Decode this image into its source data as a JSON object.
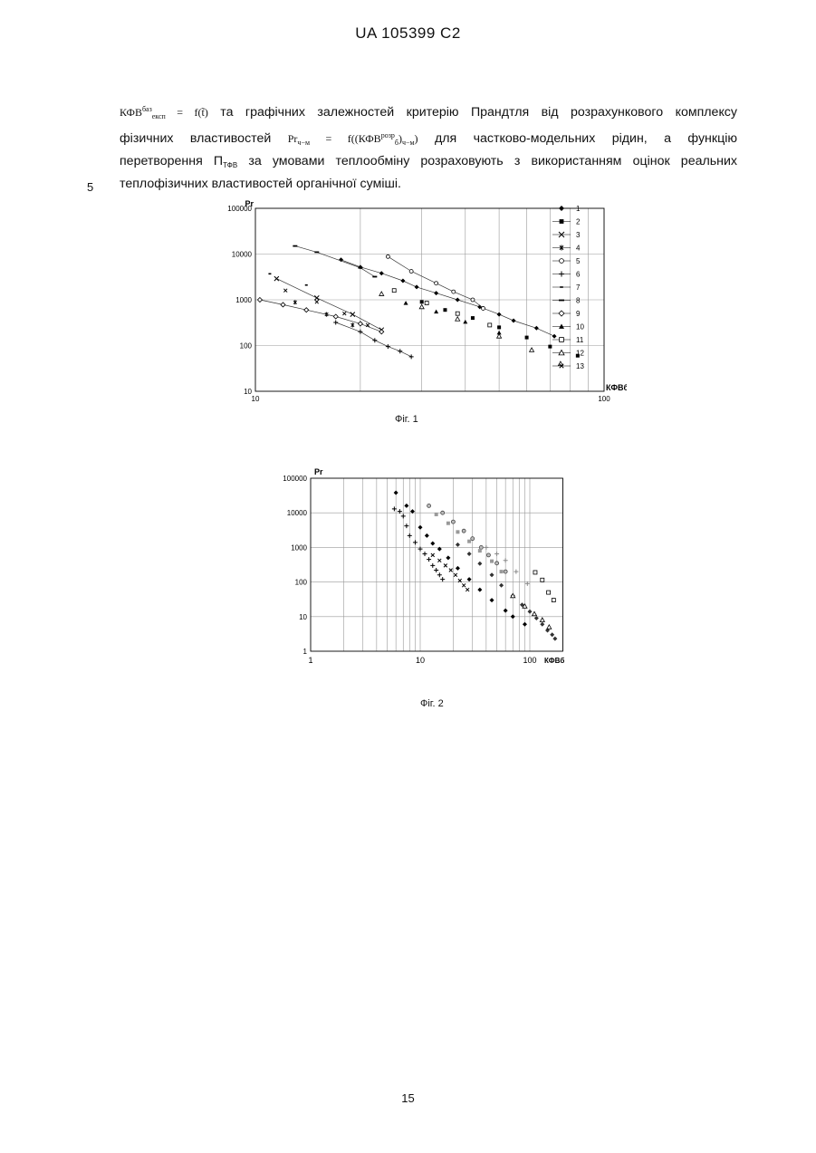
{
  "header": {
    "patent_number": "UA   105399   C2"
  },
  "paragraph": {
    "line1_formula_lhs": "КФВ",
    "line1_formula_sup": "баз",
    "line1_formula_sub": "експ",
    "line1_formula_rhs": "= f(t̃)",
    "line1_text": "та графічних залежностей критерію Прандтля від розрахункового комплексу",
    "line2_text_a": "фізичних  властивостей",
    "line2_formula_lhs": "Pr",
    "line2_formula_sub": "ч−м",
    "line2_formula_mid": "= f((КФВ",
    "line2_formula_sup2": "розр",
    "line2_formula_sub2": "б",
    "line2_formula_end": ")",
    "line2_formula_sub3": "ч−м",
    "line2_formula_close": ")",
    "line2_text_b": "для  частково-модельних  рідин,  а  функцію",
    "line3_text_a": "перетворення П",
    "line3_sub": "ТФВ",
    "line3_text_b": "за умовами теплообміну розраховують з використанням оцінок реальних",
    "line4_text": "теплофізичних властивостей органічної суміші."
  },
  "line_number": "5",
  "figure1": {
    "caption": "Фіг. 1"
  },
  "figure2": {
    "caption": "Фіг. 2"
  },
  "page_number": "15",
  "chart_data": [
    {
      "type": "scatter",
      "figure": "Фіг. 1",
      "ylabel": "Pr",
      "xlabel": "КФВб",
      "x_scale": "log",
      "y_scale": "log",
      "xlim": [
        10,
        100
      ],
      "ylim": [
        10,
        100000
      ],
      "x_ticks": [
        "10",
        "100"
      ],
      "y_ticks": [
        "10",
        "100",
        "1000",
        "10000",
        "100000"
      ],
      "grid": true,
      "legend": "right",
      "legend_entries": [
        "1",
        "2",
        "3",
        "4",
        "5",
        "6",
        "7",
        "8",
        "9",
        "10",
        "11",
        "12",
        "13"
      ],
      "series": [
        {
          "name": "1",
          "marker": "diamond-filled",
          "line": true,
          "points": [
            [
              17.6,
              7500
            ],
            [
              20,
              5200
            ],
            [
              23,
              3800
            ],
            [
              26.5,
              2600
            ],
            [
              29,
              1900
            ],
            [
              33,
              1400
            ],
            [
              38,
              1000
            ],
            [
              44,
              700
            ],
            [
              50,
              480
            ],
            [
              55,
              350
            ],
            [
              64,
              240
            ],
            [
              72,
              160
            ]
          ]
        },
        {
          "name": "2",
          "marker": "square-filled",
          "line": false,
          "points": [
            [
              30,
              900
            ],
            [
              35,
              600
            ],
            [
              42,
              400
            ],
            [
              50,
              250
            ],
            [
              60,
              150
            ],
            [
              70,
              95
            ],
            [
              84,
              60
            ]
          ]
        },
        {
          "name": "3",
          "marker": "x-large",
          "line": true,
          "points": [
            [
              11.5,
              2900
            ],
            [
              15,
              1100
            ],
            [
              19,
              480
            ],
            [
              23,
              220
            ]
          ]
        },
        {
          "name": "4",
          "marker": "asterisk",
          "line": false,
          "points": [
            [
              13,
              880
            ],
            [
              16,
              480
            ],
            [
              19,
              280
            ]
          ]
        },
        {
          "name": "5",
          "marker": "circle",
          "line": true,
          "points": [
            [
              24,
              8800
            ],
            [
              28,
              4200
            ],
            [
              33,
              2300
            ],
            [
              37,
              1500
            ],
            [
              42,
              1000
            ],
            [
              45,
              650
            ]
          ]
        },
        {
          "name": "6",
          "marker": "plus",
          "line": true,
          "points": [
            [
              17,
              320
            ],
            [
              20,
              200
            ],
            [
              22,
              130
            ],
            [
              24,
              95
            ],
            [
              26,
              75
            ],
            [
              28,
              57
            ]
          ]
        },
        {
          "name": "7",
          "marker": "dash",
          "line": false,
          "points": [
            [
              11,
              3700
            ],
            [
              14,
              2100
            ]
          ]
        },
        {
          "name": "8",
          "marker": "bar",
          "line": true,
          "points": [
            [
              13,
              15000
            ],
            [
              15,
              11000
            ],
            [
              20,
              5000
            ],
            [
              22,
              3200
            ]
          ]
        },
        {
          "name": "9",
          "marker": "diamond-open",
          "line": true,
          "points": [
            [
              10.3,
              1000
            ],
            [
              12,
              780
            ],
            [
              14,
              600
            ],
            [
              17,
              430
            ],
            [
              20,
              300
            ],
            [
              23,
              200
            ]
          ]
        },
        {
          "name": "10",
          "marker": "triangle-filled",
          "line": false,
          "points": [
            [
              27,
              850
            ],
            [
              33,
              550
            ],
            [
              40,
              330
            ],
            [
              50,
              190
            ]
          ]
        },
        {
          "name": "11",
          "marker": "square-open",
          "line": false,
          "points": [
            [
              25,
              1600
            ],
            [
              31,
              850
            ],
            [
              38,
              500
            ],
            [
              47,
              280
            ]
          ]
        },
        {
          "name": "12",
          "marker": "triangle-open",
          "line": false,
          "points": [
            [
              23,
              1350
            ],
            [
              30,
              700
            ],
            [
              38,
              380
            ],
            [
              50,
              160
            ],
            [
              62,
              80
            ],
            [
              75,
              40
            ]
          ]
        },
        {
          "name": "13",
          "marker": "x-small",
          "line": false,
          "points": [
            [
              12.2,
              1600
            ],
            [
              15,
              900
            ],
            [
              18,
              500
            ],
            [
              21,
              280
            ]
          ]
        }
      ]
    },
    {
      "type": "scatter",
      "figure": "Фіг. 2",
      "ylabel": "Pr",
      "xlabel": "КФВб",
      "x_scale": "log",
      "y_scale": "log",
      "xlim": [
        1,
        200
      ],
      "ylim": [
        1,
        100000
      ],
      "x_ticks": [
        "1",
        "10",
        "100"
      ],
      "y_ticks": [
        "1",
        "10",
        "100",
        "1000",
        "10000",
        "100000"
      ],
      "grid": true,
      "series": [
        {
          "marker": "diamond-filled",
          "points": [
            [
              6,
              38000
            ],
            [
              7.5,
              16000
            ],
            [
              8.5,
              11000
            ],
            [
              10,
              3800
            ],
            [
              11.5,
              2200
            ],
            [
              13,
              1300
            ],
            [
              15,
              900
            ],
            [
              18,
              500
            ],
            [
              22,
              250
            ],
            [
              28,
              120
            ],
            [
              35,
              60
            ],
            [
              45,
              30
            ],
            [
              60,
              15
            ],
            [
              70,
              10
            ],
            [
              90,
              6
            ]
          ]
        },
        {
          "marker": "plus",
          "points": [
            [
              5.8,
              13000
            ],
            [
              6.5,
              11000
            ],
            [
              7,
              8000
            ],
            [
              7.5,
              4200
            ],
            [
              8,
              2200
            ],
            [
              9,
              1400
            ],
            [
              10,
              900
            ],
            [
              11,
              650
            ],
            [
              12,
              450
            ],
            [
              13,
              300
            ],
            [
              14,
              220
            ],
            [
              15,
              160
            ],
            [
              16,
              120
            ]
          ]
        },
        {
          "marker": "x-small",
          "points": [
            [
              13,
              600
            ],
            [
              15,
              420
            ],
            [
              17,
              300
            ],
            [
              19,
              220
            ],
            [
              21,
              160
            ],
            [
              23,
              110
            ],
            [
              25,
              80
            ],
            [
              27,
              60
            ]
          ]
        },
        {
          "marker": "circle-gray",
          "points": [
            [
              12,
              16000
            ],
            [
              16,
              10000
            ],
            [
              20,
              5500
            ],
            [
              25,
              3000
            ],
            [
              30,
              1800
            ],
            [
              36,
              1000
            ],
            [
              42,
              600
            ],
            [
              50,
              350
            ],
            [
              60,
              200
            ]
          ]
        },
        {
          "marker": "square-gray",
          "points": [
            [
              14,
              9000
            ],
            [
              18,
              5000
            ],
            [
              22,
              2800
            ],
            [
              28,
              1500
            ],
            [
              35,
              800
            ],
            [
              45,
              400
            ],
            [
              55,
              200
            ]
          ]
        },
        {
          "marker": "diamond-dark",
          "points": [
            [
              22,
              1200
            ],
            [
              28,
              650
            ],
            [
              35,
              340
            ],
            [
              45,
              160
            ],
            [
              55,
              80
            ],
            [
              70,
              40
            ],
            [
              85,
              22
            ],
            [
              100,
              14
            ],
            [
              115,
              9
            ],
            [
              130,
              6
            ],
            [
              145,
              4
            ],
            [
              160,
              3
            ],
            [
              170,
              2.3
            ]
          ]
        },
        {
          "marker": "plus-gray",
          "points": [
            [
              40,
              1000
            ],
            [
              50,
              650
            ],
            [
              60,
              420
            ],
            [
              75,
              200
            ],
            [
              95,
              90
            ]
          ]
        },
        {
          "marker": "triangle-open",
          "points": [
            [
              70,
              40
            ],
            [
              90,
              20
            ],
            [
              110,
              12
            ],
            [
              130,
              8
            ],
            [
              150,
              5
            ]
          ]
        },
        {
          "marker": "square-open",
          "points": [
            [
              112,
              190
            ],
            [
              130,
              115
            ],
            [
              148,
              50
            ],
            [
              165,
              30
            ]
          ]
        }
      ]
    }
  ]
}
